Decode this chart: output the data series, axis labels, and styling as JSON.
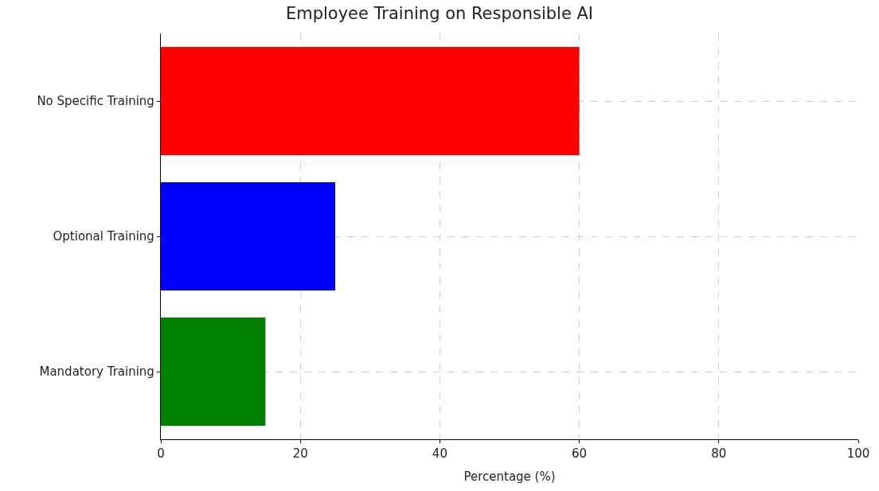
{
  "chart_data": {
    "type": "bar",
    "orientation": "horizontal",
    "title": "Employee Training on Responsible AI",
    "xlabel": "Percentage (%)",
    "categories": [
      "No Specific Training",
      "Optional Training",
      "Mandatory Training"
    ],
    "values": [
      60,
      25,
      15
    ],
    "colors": [
      "#ff0000",
      "#0000ff",
      "#008000"
    ],
    "xlim": [
      0,
      100
    ],
    "xticks": [
      0,
      20,
      40,
      60,
      80,
      100
    ],
    "grid": true,
    "legend": false
  }
}
